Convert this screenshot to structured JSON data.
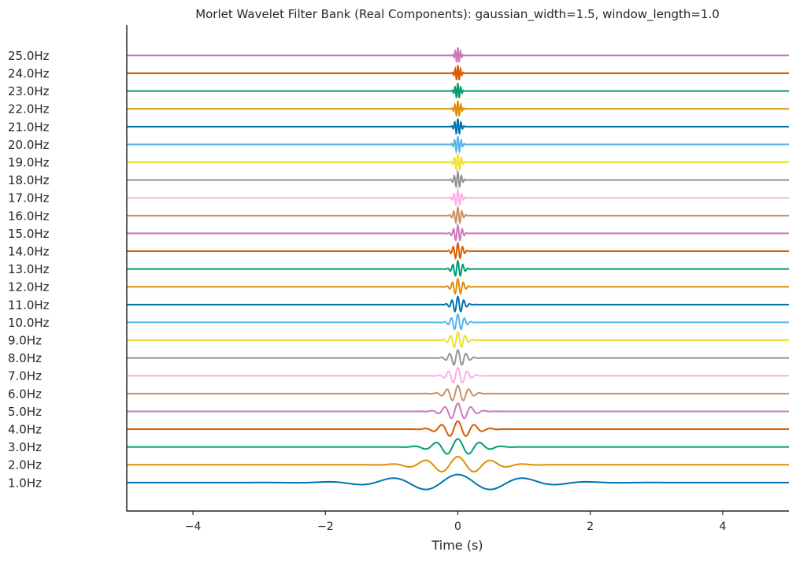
{
  "chart_data": {
    "type": "line",
    "title": "Morlet Wavelet Filter Bank (Real Components): gaussian_width=1.5, window_length=1.0",
    "xlabel": "Time (s)",
    "ylabel": "",
    "xlim": [
      -5,
      5
    ],
    "ylim": [
      -1.6,
      25.7
    ],
    "xticks": [
      -4,
      -2,
      0,
      2,
      4
    ],
    "xtick_labels": [
      "−4",
      "−2",
      "0",
      "2",
      "4"
    ],
    "grid": false,
    "legend": "none",
    "amplitude": 0.45,
    "series": [
      {
        "name": "1.0Hz",
        "freq": 1,
        "offset": 0,
        "color": "#0173b2"
      },
      {
        "name": "2.0Hz",
        "freq": 2,
        "offset": 1,
        "color": "#de8f05"
      },
      {
        "name": "3.0Hz",
        "freq": 3,
        "offset": 2,
        "color": "#029e73"
      },
      {
        "name": "4.0Hz",
        "freq": 4,
        "offset": 3,
        "color": "#d55e00"
      },
      {
        "name": "5.0Hz",
        "freq": 5,
        "offset": 4,
        "color": "#cc78bc"
      },
      {
        "name": "6.0Hz",
        "freq": 6,
        "offset": 5,
        "color": "#ca9161"
      },
      {
        "name": "7.0Hz",
        "freq": 7,
        "offset": 6,
        "color": "#fbafe4"
      },
      {
        "name": "8.0Hz",
        "freq": 8,
        "offset": 7,
        "color": "#949494"
      },
      {
        "name": "9.0Hz",
        "freq": 9,
        "offset": 8,
        "color": "#ece133"
      },
      {
        "name": "10.0Hz",
        "freq": 10,
        "offset": 9,
        "color": "#56b4e9"
      },
      {
        "name": "11.0Hz",
        "freq": 11,
        "offset": 10,
        "color": "#0173b2"
      },
      {
        "name": "12.0Hz",
        "freq": 12,
        "offset": 11,
        "color": "#de8f05"
      },
      {
        "name": "13.0Hz",
        "freq": 13,
        "offset": 12,
        "color": "#029e73"
      },
      {
        "name": "14.0Hz",
        "freq": 14,
        "offset": 13,
        "color": "#d55e00"
      },
      {
        "name": "15.0Hz",
        "freq": 15,
        "offset": 14,
        "color": "#cc78bc"
      },
      {
        "name": "16.0Hz",
        "freq": 16,
        "offset": 15,
        "color": "#ca9161"
      },
      {
        "name": "17.0Hz",
        "freq": 17,
        "offset": 16,
        "color": "#fbafe4"
      },
      {
        "name": "18.0Hz",
        "freq": 18,
        "offset": 17,
        "color": "#949494"
      },
      {
        "name": "19.0Hz",
        "freq": 19,
        "offset": 18,
        "color": "#ece133"
      },
      {
        "name": "20.0Hz",
        "freq": 20,
        "offset": 19,
        "color": "#56b4e9"
      },
      {
        "name": "21.0Hz",
        "freq": 21,
        "offset": 20,
        "color": "#0173b2"
      },
      {
        "name": "22.0Hz",
        "freq": 22,
        "offset": 21,
        "color": "#de8f05"
      },
      {
        "name": "23.0Hz",
        "freq": 23,
        "offset": 22,
        "color": "#029e73"
      },
      {
        "name": "24.0Hz",
        "freq": 24,
        "offset": 23,
        "color": "#d55e00"
      },
      {
        "name": "25.0Hz",
        "freq": 25,
        "offset": 24,
        "color": "#cc78bc"
      }
    ]
  }
}
